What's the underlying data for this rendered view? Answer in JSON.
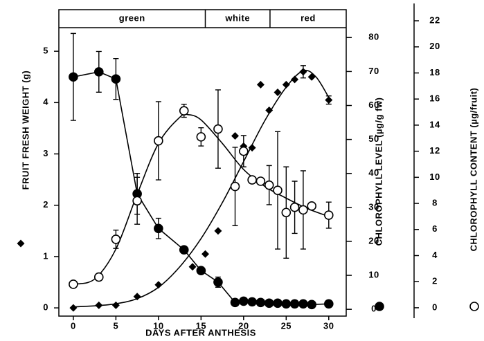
{
  "chart_data": {
    "type": "scatter",
    "xlabel": "DAYS AFTER ANTHESIS",
    "ylabel": "FRUIT FRESH WEIGHT (g)",
    "y2label": "CHLOROPHYLL LEVEL (µg/g fw)",
    "y3label": "CHLOROPHYLL CONTENT (µg/fruit)",
    "xlim": [
      -1.7,
      32.05
    ],
    "xticks": [
      0,
      5,
      10,
      15,
      20,
      25,
      30
    ],
    "ylim": [
      -0.16,
      5.81
    ],
    "yticks": [
      0,
      1,
      2,
      3,
      4,
      5
    ],
    "y2lim": [
      -2,
      88.2
    ],
    "y2ticks": [
      0,
      10,
      20,
      30,
      40,
      50,
      60,
      70,
      80
    ],
    "y3lim": [
      -0.64,
      22.85
    ],
    "y3ticks": [
      0,
      2,
      4,
      6,
      8,
      10,
      12,
      14,
      16,
      18,
      20,
      22
    ],
    "stages": [
      {
        "label": "green",
        "end": 15.5
      },
      {
        "label": "white",
        "end": 23.1
      },
      {
        "label": "red"
      }
    ],
    "series": [
      {
        "marker": "diamond",
        "axis": "y",
        "color": "#000000",
        "x": [
          0,
          3,
          5,
          7.5,
          10,
          14,
          15.5,
          17,
          19,
          20,
          21,
          22,
          23,
          24,
          25,
          26,
          27,
          28,
          30
        ],
        "values": [
          0.0,
          0.05,
          0.05,
          0.22,
          0.45,
          0.8,
          1.05,
          1.5,
          3.35,
          3.15,
          3.12,
          4.35,
          3.85,
          4.2,
          4.35,
          4.45,
          4.6,
          4.5,
          4.05
        ],
        "errors": [
          null,
          null,
          null,
          null,
          null,
          null,
          null,
          null,
          null,
          null,
          null,
          null,
          null,
          null,
          null,
          null,
          0.12,
          null,
          0.08
        ],
        "fit": {
          "x": [
            0,
            2.5,
            5,
            7.5,
            10,
            12.5,
            15,
            17.5,
            20,
            22.5,
            25,
            27,
            28.5,
            30
          ],
          "values": [
            0.02,
            0.04,
            0.08,
            0.18,
            0.4,
            0.8,
            1.35,
            2.05,
            2.85,
            3.65,
            4.3,
            4.62,
            4.5,
            4.1
          ]
        }
      },
      {
        "marker": "filled-circle",
        "axis": "y2",
        "color": "#000000",
        "connect": true,
        "x": [
          0,
          3,
          5,
          7.5,
          10,
          13,
          15,
          17,
          19,
          20,
          21,
          22,
          23,
          24,
          25,
          26,
          27,
          28,
          30
        ],
        "values": [
          68.4,
          69.9,
          67.8,
          34,
          23.8,
          17.5,
          11.4,
          8,
          2,
          2.4,
          2.2,
          2,
          1.8,
          1.8,
          1.6,
          1.6,
          1.6,
          1.4,
          1.6
        ],
        "errors": [
          12.8,
          6,
          6,
          6,
          3,
          null,
          null,
          1.5,
          null,
          null,
          null,
          null,
          null,
          null,
          null,
          null,
          null,
          null,
          null
        ]
      },
      {
        "marker": "open-circle",
        "axis": "y3",
        "color": "#000000",
        "x": [
          0,
          3,
          5,
          7.5,
          10,
          13,
          15,
          17,
          19,
          20,
          21,
          22,
          23,
          24,
          25,
          26,
          27,
          28,
          30
        ],
        "values": [
          1.8,
          2.35,
          5.25,
          8.2,
          12.8,
          15.1,
          13.1,
          13.7,
          9.3,
          12.0,
          9.8,
          9.7,
          9.4,
          9.0,
          7.3,
          7.7,
          7.5,
          7.8,
          7.1
        ],
        "errors": [
          null,
          null,
          0.7,
          1.8,
          3,
          0.5,
          0.7,
          3,
          3,
          1.2,
          null,
          null,
          1.5,
          4.5,
          3.5,
          2,
          3,
          null,
          1
        ],
        "fit": {
          "x": [
            0,
            2.5,
            5,
            7.5,
            10,
            12.5,
            13.5,
            15,
            17.5,
            20,
            22.5,
            25,
            27.5,
            30
          ],
          "values": [
            1.8,
            2.2,
            4.5,
            8.7,
            12.6,
            14.6,
            14.8,
            14.4,
            12.6,
            10.6,
            9.3,
            8.4,
            7.6,
            7.0
          ]
        }
      }
    ]
  }
}
